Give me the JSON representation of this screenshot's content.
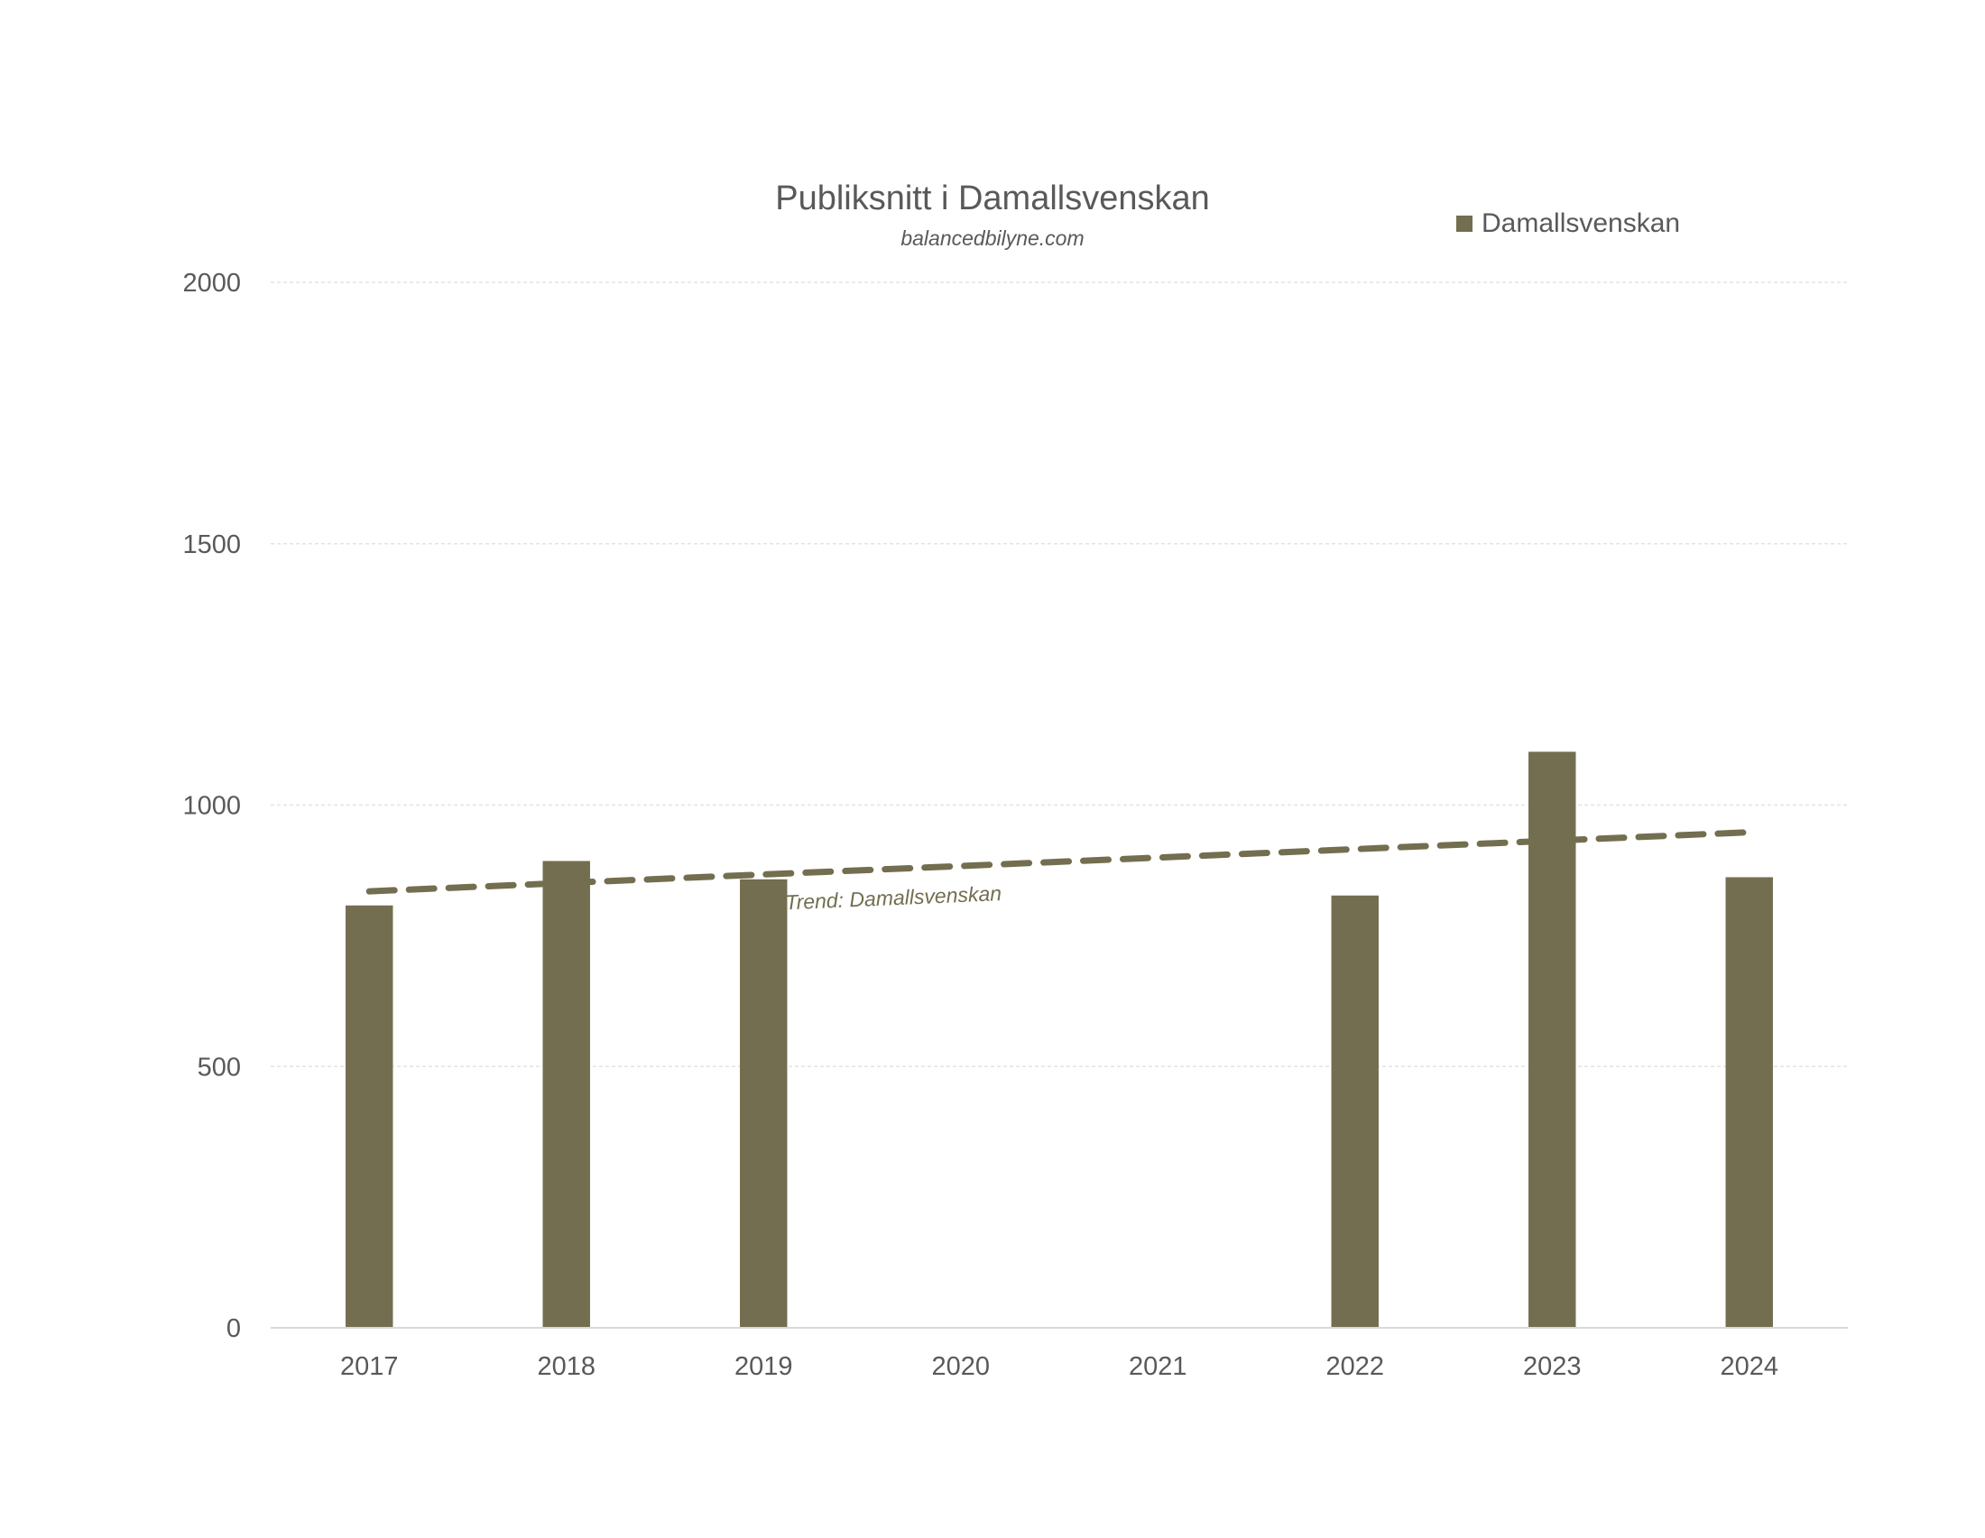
{
  "chart_data": {
    "type": "bar",
    "title": "Publiksnitt i Damallsvenskan",
    "subtitle": "balancedbilyne.com",
    "xlabel": "",
    "ylabel": "",
    "categories": [
      "2017",
      "2018",
      "2019",
      "2020",
      "2021",
      "2022",
      "2023",
      "2024"
    ],
    "series": [
      {
        "name": "Damallsvenskan",
        "values": [
          808,
          893,
          858,
          null,
          null,
          827,
          1102,
          862
        ],
        "color": "#726e4f"
      }
    ],
    "ylim": [
      0,
      2000
    ],
    "yticks": [
      0,
      500,
      1000,
      1500,
      2000
    ],
    "ytick_labels": [
      "0",
      "500",
      "1000",
      "1500",
      "2000"
    ],
    "grid": true,
    "legend": {
      "position": "top-right",
      "entries": [
        "Damallsvenskan"
      ]
    },
    "trendline": {
      "label": "Trend: Damallsvenskan",
      "start": {
        "x": "2017",
        "y": 835
      },
      "end": {
        "x": "2024",
        "y": 948
      },
      "style": "dashed",
      "color": "#726e4f"
    }
  }
}
